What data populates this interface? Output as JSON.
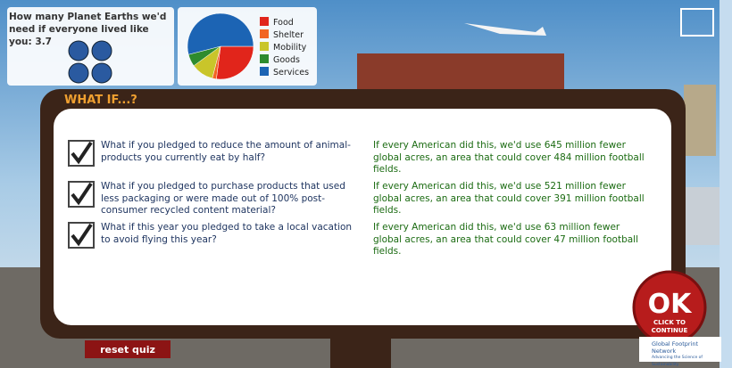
{
  "footprint": {
    "question": "How many Planet Earths we'd need if everyone lived like you:",
    "value": 3.7
  },
  "chart_data": {
    "type": "pie",
    "categories": [
      "Food",
      "Shelter",
      "Mobility",
      "Goods",
      "Services"
    ],
    "values": [
      27,
      2,
      11,
      6,
      54
    ],
    "colors": [
      "#e1251b",
      "#f26522",
      "#c9c52a",
      "#2e8b2e",
      "#1c64b4"
    ]
  },
  "panel": {
    "title": "WHAT IF...?",
    "items": [
      {
        "question": "What if you pledged to reduce the amount of animal-products you currently eat by half?",
        "answer": "If every American did this, we'd use 645 million fewer global acres, an area that could cover 484 million football fields."
      },
      {
        "question": "What if you pledged to purchase products that used less packaging or were made out of 100% post-consumer recycled content material?",
        "answer": "If every American did this, we'd use 521 million fewer global acres, an area that could cover 391 million football fields."
      },
      {
        "question": "What if this year you pledged to take a local vacation to avoid flying this year?",
        "answer": "If every American did this, we'd use 63 million fewer global acres, an area that could cover 47 million football fields."
      }
    ]
  },
  "buttons": {
    "ok": "OK",
    "ok_caption": "CLICK TO CONTINUE",
    "reset": "reset quiz"
  },
  "logo": {
    "name": "Global Footprint Network",
    "tagline": "Advancing the Science of Sustainability"
  }
}
